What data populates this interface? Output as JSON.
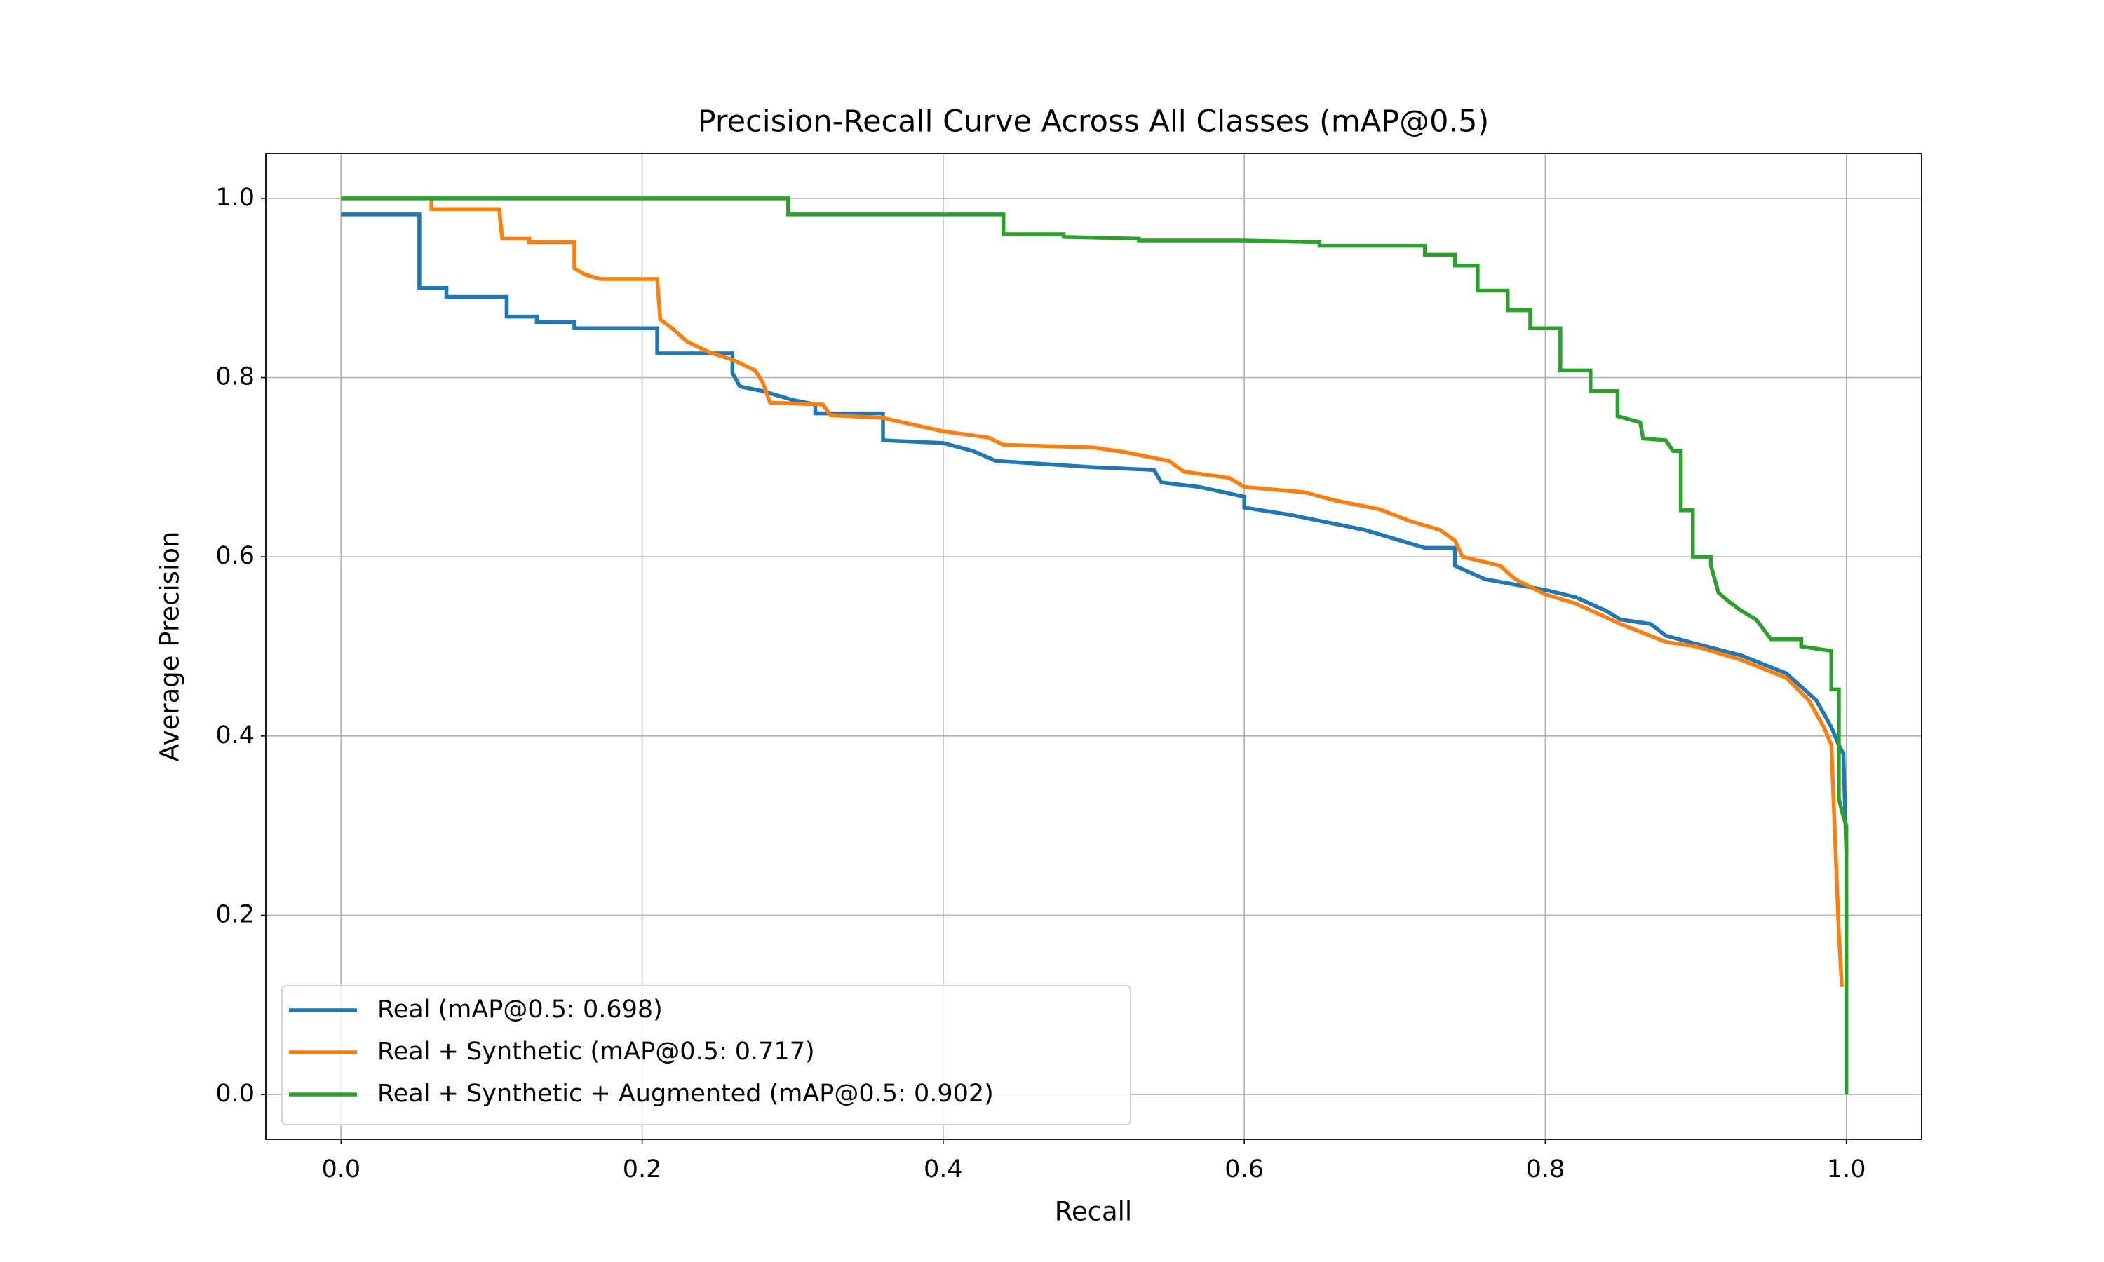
{
  "chart_data": {
    "type": "line",
    "title": "Precision-Recall Curve Across All Classes (mAP@0.5)",
    "x_label": "Recall",
    "y_label": "Average Precision",
    "xlim": [
      -0.05,
      1.05
    ],
    "ylim": [
      -0.05,
      1.05
    ],
    "xticks": [
      {
        "value": 0,
        "label": "0.0"
      },
      0.2,
      0.4,
      0.6,
      0.8,
      {
        "value": 1,
        "label": "1.0"
      }
    ],
    "yticks": [
      {
        "value": 0,
        "label": "0.0"
      },
      0.2,
      0.4,
      0.6,
      0.8,
      {
        "value": 1,
        "label": "1.0"
      }
    ],
    "grid": true,
    "legend": "lower left",
    "series": [
      {
        "name": "Real (mAP@0.5: 0.698)",
        "color": "#1f77b4",
        "x": [
          0,
          0.052,
          0.052,
          0.07,
          0.07,
          0.11,
          0.11,
          0.13,
          0.13,
          0.155,
          0.155,
          0.21,
          0.21,
          0.26,
          0.26,
          0.265,
          0.28,
          0.3,
          0.315,
          0.315,
          0.36,
          0.36,
          0.4,
          0.42,
          0.435,
          0.5,
          0.54,
          0.545,
          0.57,
          0.6,
          0.6,
          0.63,
          0.68,
          0.7,
          0.72,
          0.74,
          0.74,
          0.76,
          0.8,
          0.82,
          0.84,
          0.85,
          0.87,
          0.88,
          0.9,
          0.93,
          0.96,
          0.98,
          0.99,
          0.995,
          0.998,
          1.0
        ],
        "values": [
          0.982,
          0.982,
          0.9,
          0.9,
          0.89,
          0.89,
          0.868,
          0.868,
          0.862,
          0.862,
          0.855,
          0.855,
          0.827,
          0.827,
          0.805,
          0.79,
          0.785,
          0.775,
          0.77,
          0.76,
          0.76,
          0.73,
          0.727,
          0.718,
          0.707,
          0.7,
          0.697,
          0.683,
          0.678,
          0.667,
          0.655,
          0.647,
          0.63,
          0.62,
          0.61,
          0.61,
          0.59,
          0.575,
          0.563,
          0.555,
          0.54,
          0.53,
          0.525,
          0.512,
          0.503,
          0.49,
          0.47,
          0.44,
          0.41,
          0.39,
          0.38,
          0.27
        ]
      },
      {
        "name": "Real + Synthetic (mAP@0.5: 0.717)",
        "color": "#ff7f0e",
        "x": [
          0.06,
          0.06,
          0.105,
          0.107,
          0.125,
          0.125,
          0.155,
          0.155,
          0.162,
          0.172,
          0.21,
          0.212,
          0.22,
          0.23,
          0.245,
          0.26,
          0.275,
          0.28,
          0.285,
          0.32,
          0.325,
          0.36,
          0.4,
          0.43,
          0.44,
          0.5,
          0.52,
          0.55,
          0.56,
          0.59,
          0.6,
          0.64,
          0.66,
          0.69,
          0.71,
          0.73,
          0.74,
          0.745,
          0.77,
          0.78,
          0.8,
          0.82,
          0.85,
          0.88,
          0.9,
          0.93,
          0.96,
          0.975,
          0.985,
          0.99,
          0.995,
          0.997
        ],
        "values": [
          1.0,
          0.988,
          0.988,
          0.955,
          0.955,
          0.951,
          0.951,
          0.922,
          0.915,
          0.91,
          0.91,
          0.865,
          0.855,
          0.84,
          0.828,
          0.82,
          0.808,
          0.795,
          0.772,
          0.77,
          0.758,
          0.755,
          0.74,
          0.733,
          0.725,
          0.722,
          0.717,
          0.707,
          0.695,
          0.688,
          0.678,
          0.672,
          0.663,
          0.653,
          0.64,
          0.63,
          0.618,
          0.6,
          0.59,
          0.575,
          0.558,
          0.548,
          0.525,
          0.505,
          0.5,
          0.485,
          0.465,
          0.44,
          0.41,
          0.39,
          0.18,
          0.12
        ]
      },
      {
        "name": "Real + Synthetic + Augmented (mAP@0.5: 0.902)",
        "color": "#2ca02c",
        "x": [
          0,
          0.297,
          0.297,
          0.44,
          0.44,
          0.48,
          0.48,
          0.53,
          0.53,
          0.6,
          0.65,
          0.65,
          0.72,
          0.72,
          0.74,
          0.74,
          0.755,
          0.755,
          0.775,
          0.775,
          0.79,
          0.79,
          0.81,
          0.81,
          0.83,
          0.83,
          0.848,
          0.848,
          0.863,
          0.865,
          0.88,
          0.885,
          0.89,
          0.89,
          0.898,
          0.898,
          0.91,
          0.91,
          0.915,
          0.922,
          0.93,
          0.94,
          0.95,
          0.97,
          0.97,
          0.99,
          0.99,
          0.995,
          0.995,
          0.998,
          1.0,
          1.0
        ],
        "values": [
          1.0,
          1.0,
          0.982,
          0.982,
          0.96,
          0.96,
          0.957,
          0.955,
          0.953,
          0.953,
          0.951,
          0.947,
          0.947,
          0.937,
          0.937,
          0.925,
          0.925,
          0.897,
          0.897,
          0.875,
          0.875,
          0.855,
          0.855,
          0.808,
          0.808,
          0.785,
          0.785,
          0.757,
          0.75,
          0.732,
          0.73,
          0.718,
          0.718,
          0.652,
          0.652,
          0.6,
          0.6,
          0.59,
          0.56,
          0.55,
          0.54,
          0.53,
          0.508,
          0.508,
          0.5,
          0.495,
          0.452,
          0.452,
          0.33,
          0.31,
          0.3,
          0.0
        ]
      }
    ]
  }
}
